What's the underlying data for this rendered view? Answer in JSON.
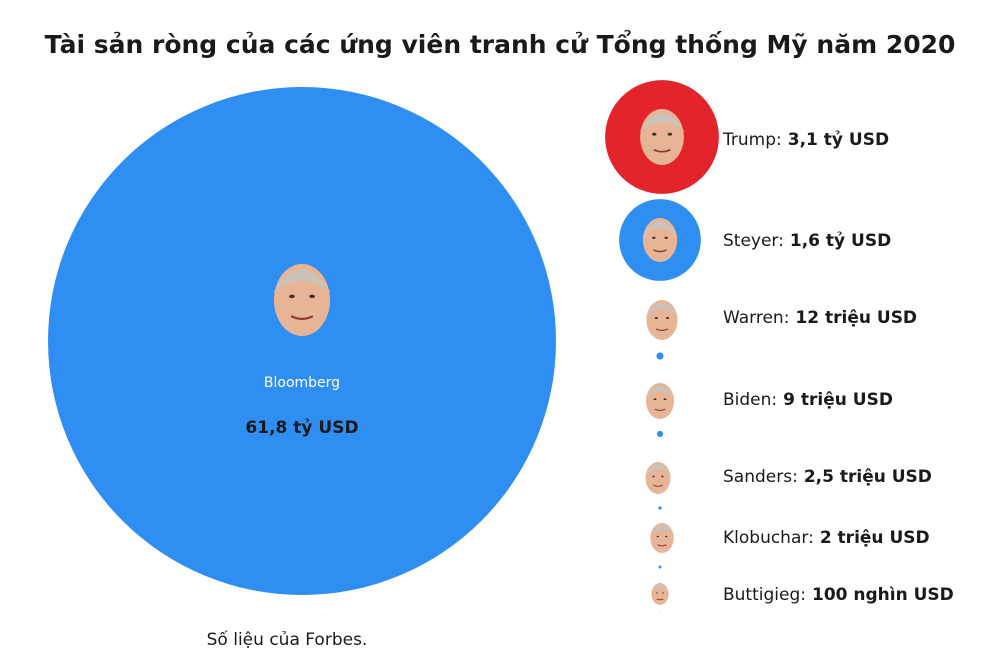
{
  "chart_data": {
    "type": "bubble",
    "title": "Tài sản ròng của các ứng viên tranh cử Tổng thống Mỹ năm 2020",
    "categories": [
      "Bloomberg",
      "Trump",
      "Steyer",
      "Warren",
      "Biden",
      "Sanders",
      "Klobuchar",
      "Buttigieg"
    ],
    "values": [
      61800000000,
      3100000000,
      1600000000,
      12000000,
      9000000,
      2500000,
      2000000,
      100000
    ],
    "value_labels": [
      "61,8 tỷ USD",
      "3,1 tỷ USD",
      "1,6 tỷ USD",
      "12 triệu USD",
      "9 triệu USD",
      "2,5 triệu USD",
      "2 triệu USD",
      "100 nghìn USD"
    ],
    "colors": [
      "#2e8ef2",
      "#e3242b",
      "#2e8ef2",
      "#2e8ef2",
      "#2e8ef2",
      "#2e8ef2",
      "#2e8ef2",
      "#2e8ef2"
    ],
    "separator": ":",
    "source": "Số liệu của Forbes."
  }
}
